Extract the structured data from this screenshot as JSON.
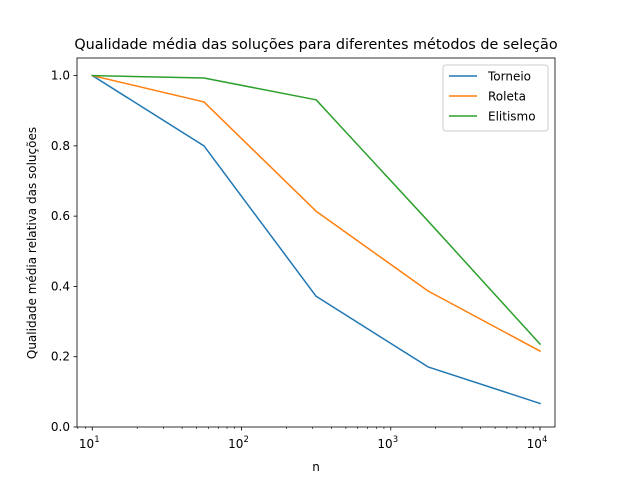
{
  "chart_data": {
    "type": "line",
    "title": "Qualidade média das soluções para diferentes métodos de seleção",
    "xlabel": "n",
    "ylabel": "Qualidade média relativa das soluções",
    "xscale": "log",
    "x": [
      10,
      56,
      316,
      1778,
      10000
    ],
    "xlim": [
      7.9,
      12600
    ],
    "ylim": [
      0.0,
      1.05
    ],
    "x_ticks": [
      {
        "value": 10,
        "base": "10",
        "exp": "1"
      },
      {
        "value": 100,
        "base": "10",
        "exp": "2"
      },
      {
        "value": 1000,
        "base": "10",
        "exp": "3"
      },
      {
        "value": 10000,
        "base": "10",
        "exp": "4"
      }
    ],
    "y_ticks": [
      {
        "value": 0.0,
        "label": "0.0"
      },
      {
        "value": 0.2,
        "label": "0.2"
      },
      {
        "value": 0.4,
        "label": "0.4"
      },
      {
        "value": 0.6,
        "label": "0.6"
      },
      {
        "value": 0.8,
        "label": "0.8"
      },
      {
        "value": 1.0,
        "label": "1.0"
      }
    ],
    "series": [
      {
        "name": "Torneio",
        "color": "#1f77b4",
        "values": [
          1.0,
          0.8,
          0.372,
          0.171,
          0.067
        ]
      },
      {
        "name": "Roleta",
        "color": "#ff7f0e",
        "values": [
          1.0,
          0.925,
          0.614,
          0.387,
          0.216
        ]
      },
      {
        "name": "Elitismo",
        "color": "#2ca02c",
        "values": [
          1.0,
          0.993,
          0.931,
          0.586,
          0.236
        ]
      }
    ],
    "legend_position": "top-right",
    "grid": false
  }
}
